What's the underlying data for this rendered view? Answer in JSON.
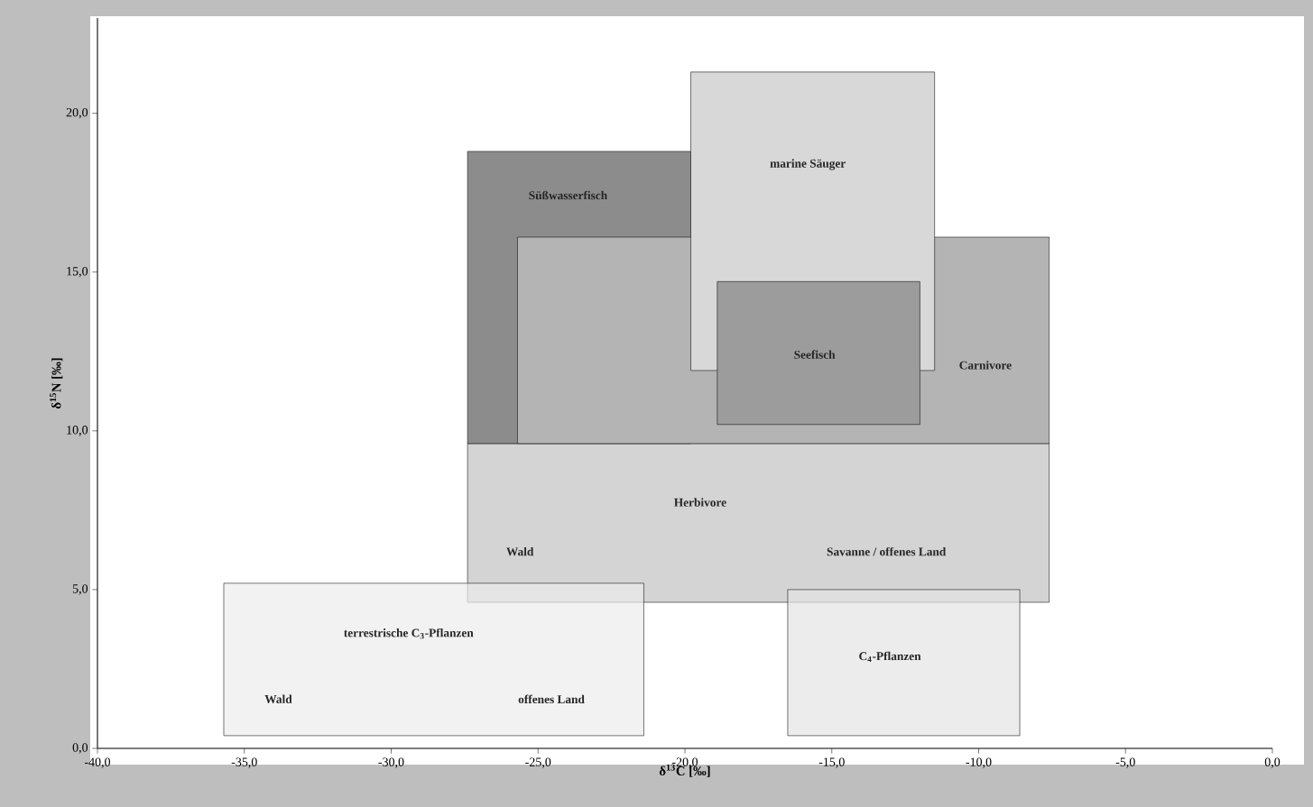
{
  "chart_data": {
    "type": "area",
    "xlabel": "δ$^{13}$C [‰]",
    "ylabel": "δ$^{15}$N [‰]",
    "xlim": [
      -40,
      0
    ],
    "ylim": [
      0,
      23
    ],
    "xticks": [
      {
        "value": -40,
        "label": "-40,0"
      },
      {
        "value": -35,
        "label": "-35,0"
      },
      {
        "value": -30,
        "label": "-30,0"
      },
      {
        "value": -25,
        "label": "-25,0"
      },
      {
        "value": -20,
        "label": "-20,0"
      },
      {
        "value": -15,
        "label": "-15,0"
      },
      {
        "value": -10,
        "label": "-10,0"
      },
      {
        "value": -5,
        "label": "-5,0"
      },
      {
        "value": 0,
        "label": "0,0"
      }
    ],
    "yticks": [
      {
        "value": 0,
        "label": "0,0"
      },
      {
        "value": 5,
        "label": "5,0"
      },
      {
        "value": 10,
        "label": "10,0"
      },
      {
        "value": 15,
        "label": "15,0"
      },
      {
        "value": 20,
        "label": "20,0"
      }
    ],
    "series": [
      {
        "name": "Herbivore",
        "x": [
          -27.4,
          -7.6
        ],
        "values": [
          null,
          null
        ],
        "lower": [
          4.6,
          4.6
        ],
        "upper": [
          9.6,
          9.6
        ]
      },
      {
        "name": "terrestrische C$_{3}$-Pflanzen",
        "x": [
          -35.7,
          -21.4
        ],
        "values": [
          null,
          null
        ],
        "lower": [
          0.4,
          0.4
        ],
        "upper": [
          5.2,
          5.2
        ]
      },
      {
        "name": "C$_{4}$-Pflanzen",
        "x": [
          -16.5,
          -8.6
        ],
        "values": [
          null,
          null
        ],
        "lower": [
          0.4,
          0.4
        ],
        "upper": [
          5.0,
          5.0
        ]
      },
      {
        "name": "Süßwasserfisch",
        "x": [
          -27.4,
          -19.8
        ],
        "values": [
          null,
          null
        ],
        "lower": [
          9.6,
          9.6
        ],
        "upper": [
          18.8,
          18.8
        ]
      },
      {
        "name": "Carnivore",
        "x": [
          -25.7,
          -7.6
        ],
        "values": [
          null,
          null
        ],
        "lower": [
          9.6,
          9.6
        ],
        "upper": [
          16.1,
          16.1
        ]
      },
      {
        "name": "marine Säuger",
        "x": [
          -19.8,
          -11.5
        ],
        "values": [
          null,
          null
        ],
        "lower": [
          11.9,
          11.9
        ],
        "upper": [
          21.3,
          21.3
        ]
      },
      {
        "name": "Seefisch",
        "x": [
          -18.9,
          -12.0
        ],
        "values": [
          null,
          null
        ],
        "lower": [
          10.2,
          10.2
        ],
        "upper": [
          14.7,
          14.7
        ]
      }
    ],
    "annotations": [
      "Wald",
      "Savanne / offenes Land",
      "Wald",
      "offenes Land"
    ]
  }
}
